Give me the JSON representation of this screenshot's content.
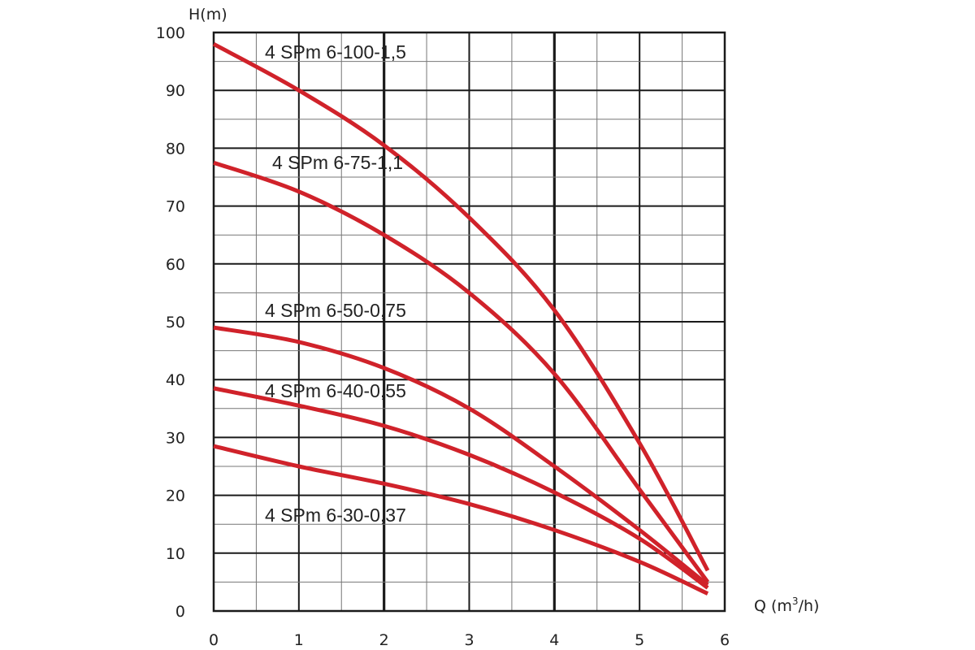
{
  "chart_data": {
    "type": "line",
    "title": "",
    "xlabel": "Q (m³/h)",
    "xlabel_base": "Q (m",
    "xlabel_sup": "3",
    "xlabel_tail": "/h)",
    "ylabel": "H(m)",
    "xlim": [
      0,
      6
    ],
    "ylim": [
      0,
      100
    ],
    "grid": true,
    "x_ticks": [
      "0",
      "1",
      "2",
      "3",
      "4",
      "5",
      "6"
    ],
    "y_ticks": [
      "0",
      "10",
      "20",
      "30",
      "40",
      "50",
      "60",
      "70",
      "80",
      "90",
      "100"
    ],
    "line_color": "#d0222a",
    "series": [
      {
        "name": "4 SPm 6-100-1,5",
        "x": [
          0,
          1,
          2,
          3,
          4,
          5,
          5.8
        ],
        "y": [
          98,
          90,
          80.5,
          68,
          52,
          29,
          7
        ]
      },
      {
        "name": "4 SPm 6-75-1,1",
        "x": [
          0,
          1,
          2,
          3,
          4,
          5,
          5.8
        ],
        "y": [
          77.5,
          72.5,
          65,
          55,
          41,
          21,
          5
        ]
      },
      {
        "name": "4 SPm 6-50-0,75",
        "x": [
          0,
          1,
          2,
          3,
          4,
          5,
          5.8
        ],
        "y": [
          49,
          46.5,
          42,
          35,
          25,
          14,
          4.5
        ]
      },
      {
        "name": "4 SPm 6-40-0,55",
        "x": [
          0,
          1,
          2,
          3,
          4,
          5,
          5.8
        ],
        "y": [
          38.5,
          35.5,
          32,
          27,
          20.5,
          12.5,
          4
        ]
      },
      {
        "name": "4 SPm 6-30-0,37",
        "x": [
          0,
          1,
          2,
          3,
          4,
          5,
          5.8
        ],
        "y": [
          28.5,
          25,
          22,
          18.5,
          14,
          8.5,
          3
        ]
      }
    ]
  }
}
